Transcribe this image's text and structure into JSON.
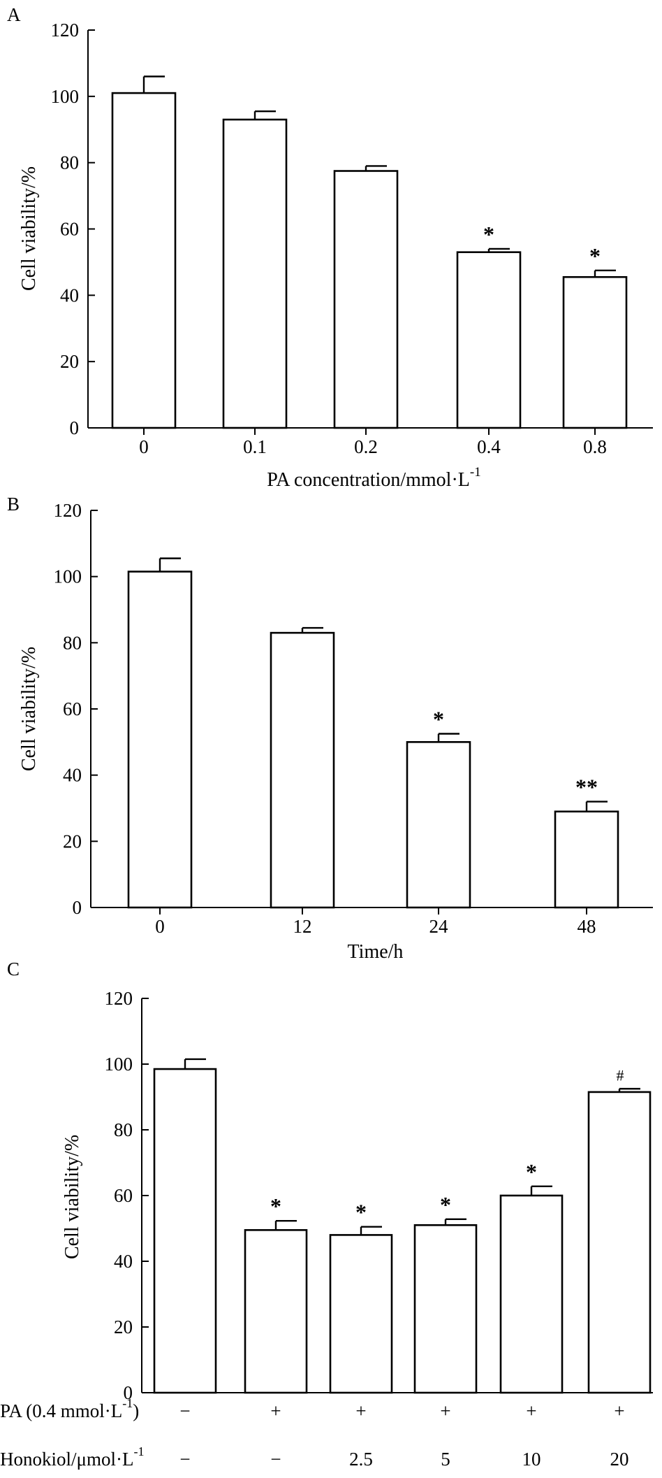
{
  "chart_data": [
    {
      "panel": "A",
      "type": "bar",
      "ylabel": "Cell viability/%",
      "xlabel": "PA concentration/mmol·L",
      "xlabel_sup": "-1",
      "yticks": [
        0,
        20,
        40,
        60,
        80,
        100,
        120
      ],
      "ylim": [
        0,
        120
      ],
      "categories": [
        "0",
        "0.1",
        "0.2",
        "0.4",
        "0.8"
      ],
      "values": [
        101,
        93,
        77.5,
        53,
        45.5
      ],
      "errors": [
        5,
        2.5,
        1.5,
        1,
        2
      ],
      "annotations": [
        "",
        "",
        "",
        "*",
        "*"
      ]
    },
    {
      "panel": "B",
      "type": "bar",
      "ylabel": "Cell viability/%",
      "xlabel": "Time/h",
      "xlabel_sup": "",
      "yticks": [
        0,
        20,
        40,
        60,
        80,
        100,
        120
      ],
      "ylim": [
        0,
        120
      ],
      "categories": [
        "0",
        "12",
        "24",
        "48"
      ],
      "values": [
        101.5,
        83,
        50,
        29
      ],
      "errors": [
        4,
        1.5,
        2.5,
        3
      ],
      "annotations": [
        "",
        "",
        "*",
        "**"
      ]
    },
    {
      "panel": "C",
      "type": "bar",
      "ylabel": "Cell viability/%",
      "xlabel": "",
      "yticks": [
        0,
        20,
        40,
        60,
        80,
        100,
        120
      ],
      "ylim": [
        0,
        120
      ],
      "values": [
        98.5,
        49.5,
        48,
        51,
        60,
        91.5
      ],
      "errors": [
        3,
        2.8,
        2.5,
        1.8,
        2.8,
        1
      ],
      "annotations": [
        "",
        "*",
        "*",
        "*",
        "*",
        "#"
      ],
      "row_labels": [
        {
          "text": "PA (0.4 mmol·L",
          "sup": "-1",
          "suffix": ")"
        },
        {
          "text": "Honokiol/μmol·L",
          "sup": "-1",
          "suffix": ""
        }
      ],
      "rows": [
        [
          "−",
          "+",
          "+",
          "+",
          "+",
          "+"
        ],
        [
          "−",
          "−",
          "2.5",
          "5",
          "10",
          "20"
        ]
      ]
    }
  ]
}
